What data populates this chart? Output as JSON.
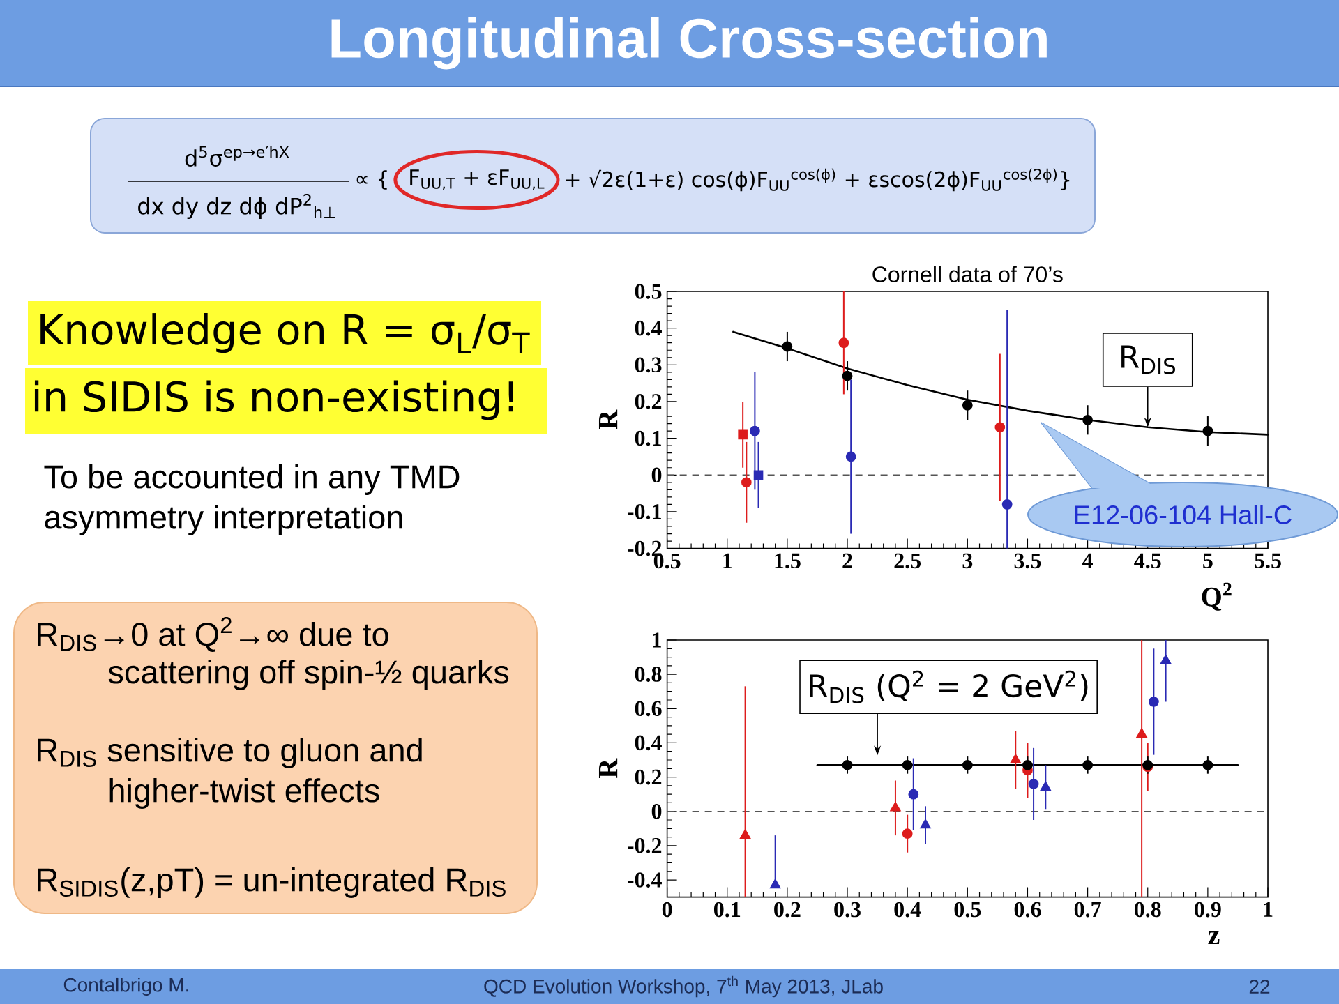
{
  "chart_data": [
    {
      "type": "other",
      "title": "Longitudinal Cross-section",
      "annotations": [
        "d$^{5}$σ$^{ep→e′hX}$",
        "dx dy dz dϕ dP$^{2}$$_{h⊥}$",
        "∝ {",
        "F$_{UU,T}$ + εF$_{UU,L}$",
        "+ √2ε(1+ε) cos(ϕ)F$_{UU}$$^{cos(ϕ)}$ + εscos(2ϕ)F$_{UU}$$^{cos(2ϕ)}$}",
        "Knowledge on R = σ$_{L}$/σ$_{T}$",
        "in SIDIS is non-existing!",
        "To be accounted in any TMD",
        "asymmetry interpretation",
        "R$_{DIS}$→0  at Q$^{2}$→∞ due to",
        "scattering off spin-½ quarks",
        "R$_{DIS}$ sensitive to gluon and",
        "higher-twist effects",
        "R$_{SIDIS}$(z,pT) = un-integrated R$_{DIS}$",
        "Contalbrigo M.",
        "QCD Evolution Workshop, 7$^{th}$ May 2013, JLab",
        "22"
      ]
    },
    {
      "type": "scatter",
      "title": "Cornell data of 70’s",
      "xlabel": "Q$^{2}$",
      "ylabel": "R",
      "xlim": [
        0.5,
        5.5
      ],
      "xticks": [
        0.5,
        1,
        1.5,
        2,
        2.5,
        3,
        3.5,
        4,
        4.5,
        5,
        5.5
      ],
      "ylim": [
        -0.2,
        0.5
      ],
      "yticks": [
        -0.2,
        -0.1,
        0,
        0.1,
        0.2,
        0.3,
        0.4,
        0.5
      ],
      "ref_lines": [
        {
          "axis": "y",
          "value": 0,
          "line_style": "dashed",
          "color": "#555555"
        }
      ],
      "annotations": [
        {
          "text": "R$_{DIS}$",
          "x": 4.5,
          "y": 0.13
        },
        "E12-06-104  Hall-C"
      ],
      "series": [
        {
          "type": "line",
          "color": "#000000",
          "marker": "none",
          "x": [
            1.05,
            1.5,
            2,
            2.5,
            3,
            3.5,
            4,
            4.5,
            5,
            5.5
          ],
          "values": [
            0.39,
            0.345,
            0.29,
            0.245,
            0.205,
            0.175,
            0.15,
            0.13,
            0.117,
            0.11
          ]
        },
        {
          "color": "#dd1c1c",
          "marker": "circle",
          "x": [
            1.16,
            1.97,
            3.27
          ],
          "values": [
            -0.02,
            0.36,
            0.13
          ],
          "errors": [
            0.11,
            [
              0.22,
              0.5
            ],
            0.2
          ]
        },
        {
          "color": "#dd1c1c",
          "marker": "square",
          "x": [
            1.13
          ],
          "values": [
            0.11
          ],
          "errors": [
            0.09
          ]
        },
        {
          "color": "#2a2ab4",
          "marker": "circle",
          "x": [
            1.23,
            2.03,
            3.33
          ],
          "values": [
            0.12,
            0.05,
            -0.08
          ],
          "errors": [
            0.16,
            0.21,
            [
              -0.2,
              0.45
            ]
          ]
        },
        {
          "color": "#2a2ab4",
          "marker": "square",
          "x": [
            1.26
          ],
          "values": [
            0
          ],
          "errors": [
            0.09
          ]
        },
        {
          "color": "#000000",
          "marker": "circle",
          "x": [
            1.5,
            2,
            3,
            4,
            5
          ],
          "values": [
            0.35,
            0.27,
            0.19,
            0.15,
            0.12
          ],
          "errors": [
            0.04,
            0.04,
            0.04,
            0.04,
            0.04
          ]
        }
      ]
    },
    {
      "type": "scatter",
      "xlabel": "z",
      "ylabel": "R",
      "xlim": [
        0,
        1
      ],
      "xticks": [
        0,
        0.1,
        0.2,
        0.3,
        0.4,
        0.5,
        0.6,
        0.7,
        0.8,
        0.9,
        1
      ],
      "ylim": [
        -0.5,
        1
      ],
      "yticks": [
        -0.4,
        -0.2,
        0,
        0.2,
        0.4,
        0.6,
        0.8,
        1
      ],
      "ref_lines": [
        {
          "axis": "y",
          "value": 0,
          "line_style": "dashed",
          "color": "#555555"
        }
      ],
      "annotations": [
        {
          "text": "R$_{DIS}$ (Q$^{2}$ = 2 GeV$^{2}$)",
          "x": 0.35,
          "y": 0.27
        }
      ],
      "series": [
        {
          "type": "line",
          "color": "#000000",
          "marker": "none",
          "x": [
            0.25,
            0.95
          ],
          "values": [
            0.27,
            0.27
          ]
        },
        {
          "color": "#dd1c1c",
          "marker": "triangle",
          "x": [
            0.13,
            0.38,
            0.58,
            0.79
          ],
          "values": [
            -0.14,
            0.02,
            0.3,
            0.45
          ],
          "errors": [
            [
              -0.5,
              0.73
            ],
            0.16,
            0.17,
            [
              -0.5,
              1
            ]
          ]
        },
        {
          "color": "#dd1c1c",
          "marker": "circle",
          "x": [
            0.4,
            0.6,
            0.8
          ],
          "values": [
            -0.13,
            0.24,
            0.26
          ],
          "errors": [
            0.11,
            0.16,
            0.14
          ]
        },
        {
          "color": "#2a2ab4",
          "marker": "circle",
          "x": [
            0.41,
            0.61,
            0.81
          ],
          "values": [
            0.1,
            0.16,
            0.64
          ],
          "errors": [
            0.21,
            0.21,
            0.31
          ]
        },
        {
          "color": "#2a2ab4",
          "marker": "triangle",
          "x": [
            0.18,
            0.43,
            0.63,
            0.83
          ],
          "values": [
            -0.43,
            -0.08,
            0.14,
            0.88
          ],
          "errors": [
            [
              -0.43,
              -0.14
            ],
            0.11,
            0.13,
            [
              0.64,
              1
            ]
          ]
        },
        {
          "color": "#000000",
          "marker": "circle",
          "x": [
            0.3,
            0.4,
            0.5,
            0.6,
            0.7,
            0.8,
            0.9
          ],
          "values": [
            0.27,
            0.27,
            0.27,
            0.27,
            0.27,
            0.27,
            0.27
          ],
          "errors": [
            0.05,
            0.05,
            0.05,
            0.05,
            0.05,
            0.05,
            0.05
          ]
        }
      ]
    }
  ]
}
